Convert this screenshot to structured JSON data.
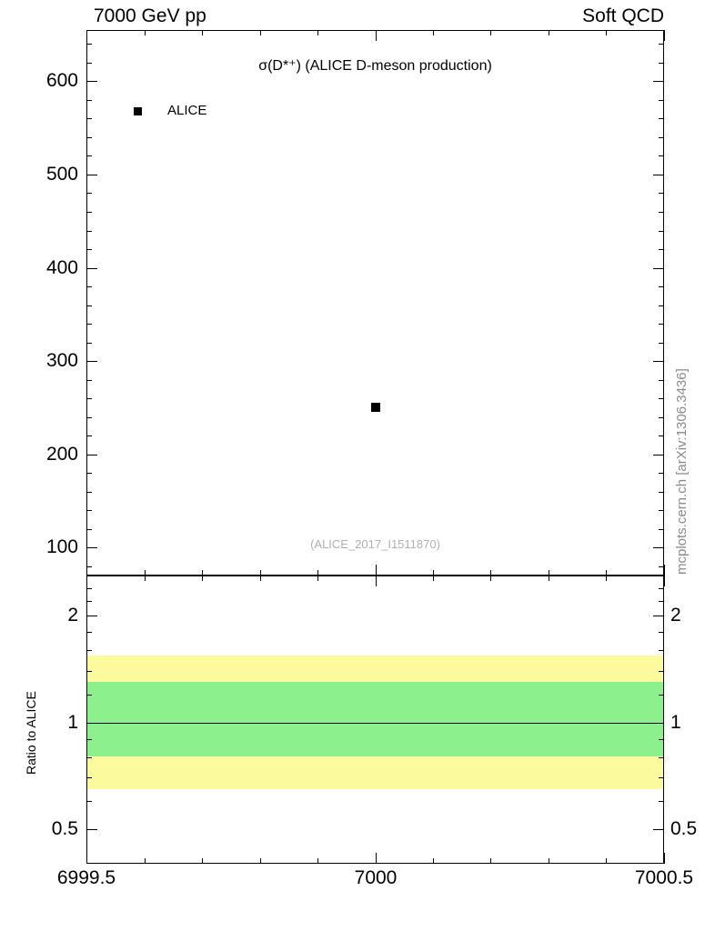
{
  "header": {
    "left": "7000 GeV pp",
    "right": "Soft QCD"
  },
  "main_plot": {
    "title": "σ(D*⁺) (ALICE D-meson production)",
    "legend_label": "ALICE",
    "watermark": "(ALICE_2017_I1511870)",
    "side_label": "mcplots.cern.ch [arXiv:1306.3436]"
  },
  "ratio_plot": {
    "ylabel": "Ratio to ALICE"
  },
  "chart_data": [
    {
      "type": "scatter",
      "title": "σ(D*⁺) (ALICE D-meson production)",
      "xlabel": "",
      "ylabel": "",
      "xlim": [
        6999.5,
        7000.5
      ],
      "ylim": [
        70,
        655
      ],
      "xticks": [
        6999.5,
        7000,
        7000.5
      ],
      "xtick_labels": [
        "6999.5",
        "7000",
        "7000.5"
      ],
      "yticks": [
        100,
        200,
        300,
        400,
        500,
        600
      ],
      "ytick_labels": [
        "100",
        "200",
        "300",
        "400",
        "500",
        "600"
      ],
      "grid": false,
      "legend_position": "top-left",
      "series": [
        {
          "name": "ALICE",
          "marker": "filled-square",
          "color": "#000000",
          "points": [
            {
              "x": 7000,
              "y": 250
            }
          ]
        }
      ]
    },
    {
      "type": "band",
      "ylabel": "Ratio to ALICE",
      "yscale": "log",
      "xlim": [
        6999.5,
        7000.5
      ],
      "ylim": [
        0.4,
        2.6
      ],
      "yticks": [
        0.5,
        1,
        2
      ],
      "ytick_labels": [
        "0.5",
        "1",
        "2"
      ],
      "yticks_minor": [
        0.6,
        0.7,
        0.8,
        0.9,
        1.2,
        1.4,
        1.6,
        1.8,
        2.2,
        2.4
      ],
      "reference_line": 1.0,
      "bands": [
        {
          "name": "outer-uncertainty-band",
          "color": "#fbfb9d",
          "from": 0.65,
          "to": 1.55
        },
        {
          "name": "inner-uncertainty-band",
          "color": "#8cf08c",
          "from": 0.8,
          "to": 1.3
        }
      ],
      "grid": false
    }
  ]
}
